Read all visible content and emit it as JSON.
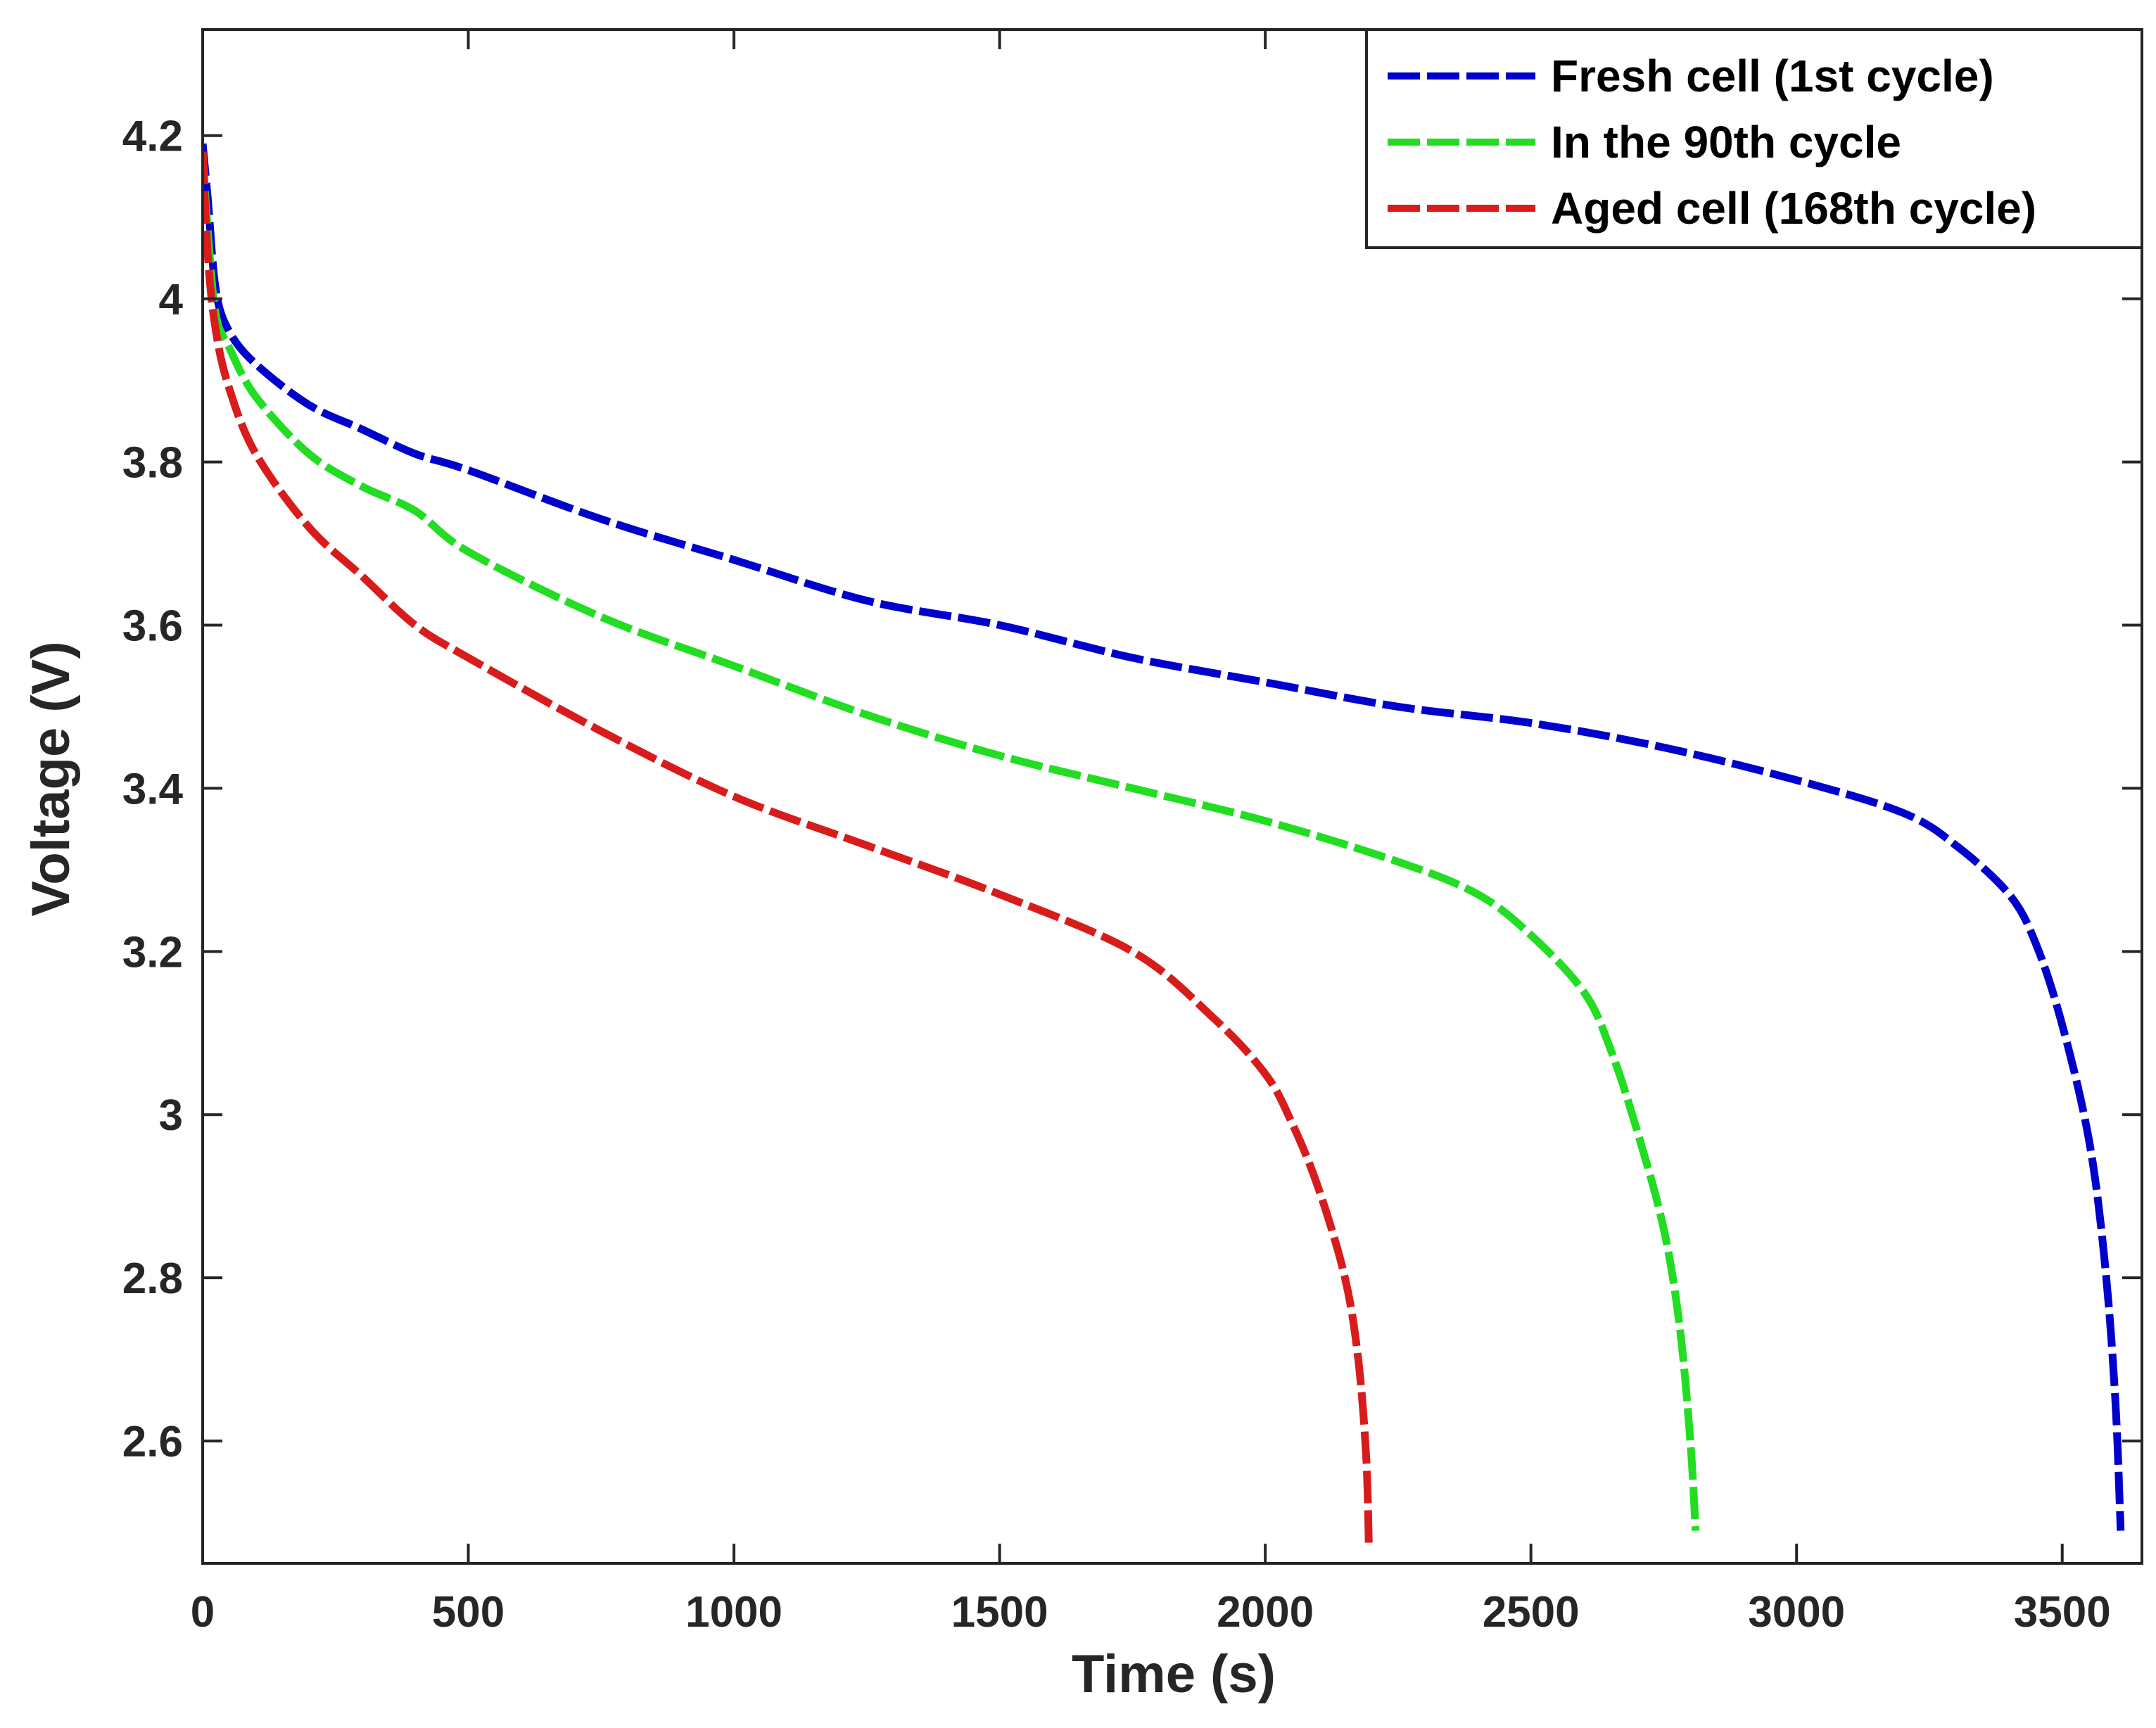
{
  "chart_data": {
    "type": "line",
    "title": "",
    "xlabel": "Time (s)",
    "ylabel": "Voltage (V)",
    "xlim": [
      0,
      3650
    ],
    "ylim": [
      2.45,
      4.33
    ],
    "grid": false,
    "legend_position": "top-right",
    "x_ticks": [
      0,
      500,
      1000,
      1500,
      2000,
      2500,
      3000,
      3500
    ],
    "x_tick_labels": [
      "0",
      "500",
      "1000",
      "1500",
      "2000",
      "2500",
      "3000",
      "3500"
    ],
    "y_ticks": [
      2.6,
      2.8,
      3.0,
      3.2,
      3.4,
      3.6,
      3.8,
      4.0,
      4.2
    ],
    "y_tick_labels": [
      "2.6",
      "2.8",
      "3",
      "3.2",
      "3.4",
      "3.6",
      "3.8",
      "4",
      "4.2"
    ],
    "series": [
      {
        "name": "Fresh cell (1st cycle)",
        "color": "#0000cc",
        "points": [
          [
            0,
            4.19
          ],
          [
            10,
            4.12
          ],
          [
            25,
            4.01
          ],
          [
            50,
            3.96
          ],
          [
            100,
            3.92
          ],
          [
            200,
            3.87
          ],
          [
            300,
            3.84
          ],
          [
            400,
            3.81
          ],
          [
            500,
            3.79
          ],
          [
            750,
            3.73
          ],
          [
            1000,
            3.68
          ],
          [
            1250,
            3.63
          ],
          [
            1500,
            3.6
          ],
          [
            1750,
            3.56
          ],
          [
            2000,
            3.53
          ],
          [
            2250,
            3.5
          ],
          [
            2500,
            3.48
          ],
          [
            2750,
            3.45
          ],
          [
            3000,
            3.41
          ],
          [
            3200,
            3.37
          ],
          [
            3300,
            3.33
          ],
          [
            3400,
            3.27
          ],
          [
            3450,
            3.21
          ],
          [
            3500,
            3.11
          ],
          [
            3550,
            2.97
          ],
          [
            3580,
            2.82
          ],
          [
            3600,
            2.65
          ],
          [
            3610,
            2.49
          ]
        ]
      },
      {
        "name": "In the 90th cycle",
        "color": "#22dd22",
        "points": [
          [
            0,
            4.18
          ],
          [
            10,
            4.08
          ],
          [
            25,
            3.98
          ],
          [
            50,
            3.94
          ],
          [
            100,
            3.88
          ],
          [
            200,
            3.81
          ],
          [
            300,
            3.77
          ],
          [
            400,
            3.74
          ],
          [
            500,
            3.69
          ],
          [
            750,
            3.61
          ],
          [
            1000,
            3.55
          ],
          [
            1250,
            3.49
          ],
          [
            1500,
            3.44
          ],
          [
            1750,
            3.4
          ],
          [
            2000,
            3.36
          ],
          [
            2250,
            3.31
          ],
          [
            2400,
            3.27
          ],
          [
            2500,
            3.22
          ],
          [
            2600,
            3.15
          ],
          [
            2650,
            3.08
          ],
          [
            2700,
            2.98
          ],
          [
            2750,
            2.86
          ],
          [
            2780,
            2.74
          ],
          [
            2800,
            2.6
          ],
          [
            2810,
            2.49
          ]
        ]
      },
      {
        "name": "Aged cell (168th cycle)",
        "color": "#d81c1c",
        "points": [
          [
            0,
            4.18
          ],
          [
            10,
            4.05
          ],
          [
            25,
            3.96
          ],
          [
            50,
            3.89
          ],
          [
            100,
            3.81
          ],
          [
            200,
            3.72
          ],
          [
            300,
            3.66
          ],
          [
            400,
            3.6
          ],
          [
            500,
            3.56
          ],
          [
            750,
            3.47
          ],
          [
            1000,
            3.39
          ],
          [
            1250,
            3.33
          ],
          [
            1500,
            3.27
          ],
          [
            1750,
            3.2
          ],
          [
            1900,
            3.12
          ],
          [
            2000,
            3.05
          ],
          [
            2050,
            2.99
          ],
          [
            2100,
            2.91
          ],
          [
            2150,
            2.8
          ],
          [
            2175,
            2.7
          ],
          [
            2190,
            2.58
          ],
          [
            2195,
            2.47
          ]
        ]
      }
    ]
  }
}
